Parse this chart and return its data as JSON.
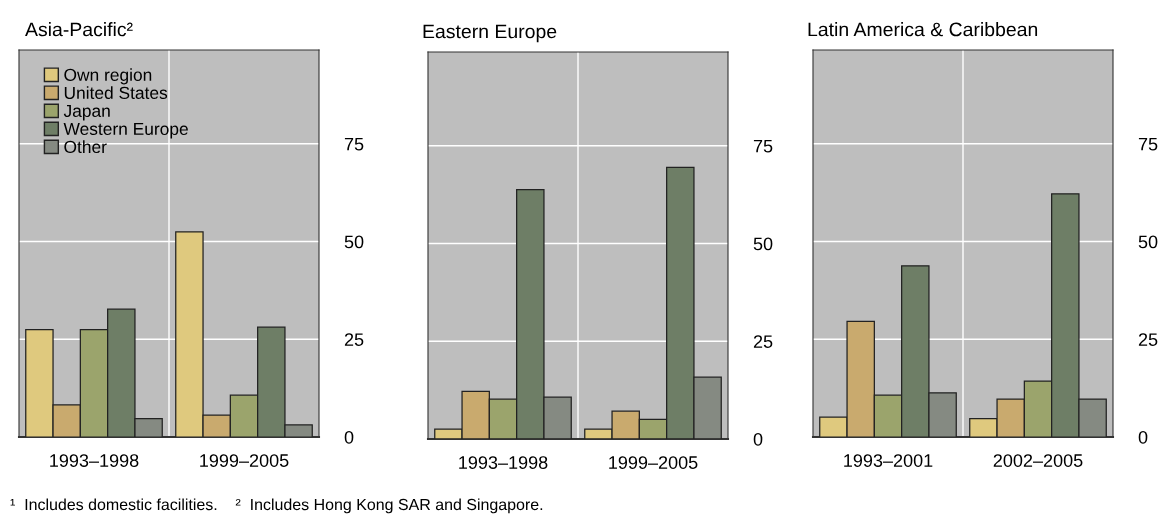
{
  "chart_data": [
    {
      "type": "bar",
      "title": "Asia-Pacific²",
      "categories": [
        "1993–1998",
        "1999–2005"
      ],
      "ylim": [
        0,
        99
      ],
      "yticks": [
        0,
        25,
        50,
        75
      ],
      "grid": true,
      "legend": "top left",
      "series": [
        {
          "name": "Own region",
          "color": "#dfc97e",
          "values": [
            27.5,
            52.5
          ]
        },
        {
          "name": "United States",
          "color": "#c9aa6e",
          "values": [
            8.2,
            5.6
          ]
        },
        {
          "name": "Japan",
          "color": "#9ba46c",
          "values": [
            27.5,
            10.7
          ]
        },
        {
          "name": "Western Europe",
          "color": "#6e7e66",
          "values": [
            32.7,
            28.1
          ]
        },
        {
          "name": "Other",
          "color": "#858a82",
          "values": [
            4.7,
            3.1
          ]
        }
      ],
      "annotations": [
        "¹  Includes domestic facilities.    ²  Includes Hong Kong SAR and Singapore."
      ]
    },
    {
      "type": "bar",
      "title": "Eastern Europe",
      "categories": [
        "1993–1998",
        "1999–2005"
      ],
      "ylim": [
        0,
        99
      ],
      "yticks": [
        0,
        25,
        50,
        75
      ],
      "grid": true,
      "series": [
        {
          "color": "#dfc97e",
          "values": [
            2.5,
            2.5
          ]
        },
        {
          "color": "#c9aa6e",
          "values": [
            12.2,
            7.1
          ]
        },
        {
          "color": "#9ba46c",
          "values": [
            10.2,
            5.0
          ]
        },
        {
          "color": "#6e7e66",
          "values": [
            63.8,
            69.5
          ]
        },
        {
          "color": "#858a82",
          "values": [
            10.7,
            15.8
          ]
        }
      ]
    },
    {
      "type": "bar",
      "title": "Latin America & Caribbean",
      "categories": [
        "1993–2001",
        "2002–2005"
      ],
      "ylim": [
        0,
        99
      ],
      "yticks": [
        0,
        25,
        50,
        75
      ],
      "grid": true,
      "series": [
        {
          "color": "#dfc97e",
          "values": [
            5.1,
            4.7
          ]
        },
        {
          "color": "#c9aa6e",
          "values": [
            29.6,
            9.7
          ]
        },
        {
          "color": "#9ba46c",
          "values": [
            10.7,
            14.3
          ]
        },
        {
          "color": "#6e7e66",
          "values": [
            43.8,
            62.2
          ]
        },
        {
          "color": "#858a82",
          "values": [
            11.3,
            9.7
          ]
        }
      ]
    }
  ]
}
